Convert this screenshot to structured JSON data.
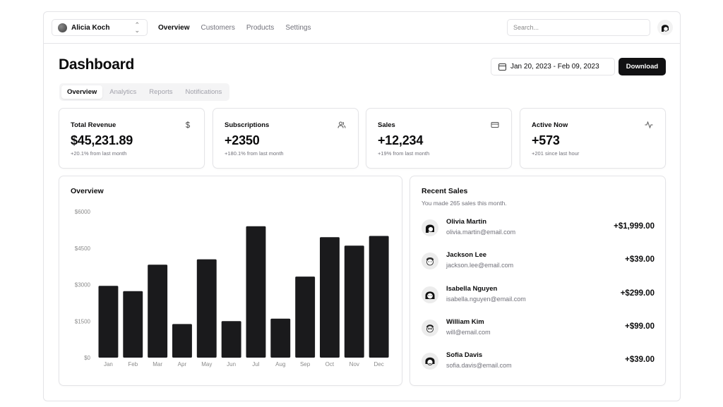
{
  "account": {
    "name": "Alicia Koch"
  },
  "nav": [
    "Overview",
    "Customers",
    "Products",
    "Settings"
  ],
  "search": {
    "placeholder": "Search..."
  },
  "page_title": "Dashboard",
  "date_range": "Jan 20, 2023 - Feb 09, 2023",
  "download_label": "Download",
  "tabs": [
    "Overview",
    "Analytics",
    "Reports",
    "Notifications"
  ],
  "stats": [
    {
      "label": "Total Revenue",
      "value": "$45,231.89",
      "sub": "+20.1% from last month",
      "icon": "dollar-icon"
    },
    {
      "label": "Subscriptions",
      "value": "+2350",
      "sub": "+180.1% from last month",
      "icon": "users-icon"
    },
    {
      "label": "Sales",
      "value": "+12,234",
      "sub": "+19% from last month",
      "icon": "credit-card-icon"
    },
    {
      "label": "Active Now",
      "value": "+573",
      "sub": "+201 since last hour",
      "icon": "activity-icon"
    }
  ],
  "overview_title": "Overview",
  "chart_data": {
    "type": "bar",
    "title": "",
    "categories": [
      "Jan",
      "Feb",
      "Mar",
      "Apr",
      "May",
      "Jun",
      "Jul",
      "Aug",
      "Sep",
      "Oct",
      "Nov",
      "Dec"
    ],
    "values": [
      2950,
      2730,
      3820,
      1380,
      4040,
      1500,
      5400,
      1600,
      3330,
      4950,
      4600,
      5000
    ],
    "ylim": [
      0,
      6000
    ],
    "yticks": [
      "$0",
      "$1500",
      "$3000",
      "$4500",
      "$6000"
    ],
    "bar_color": "#1a1a1c",
    "grid": false
  },
  "recent_sales": {
    "title": "Recent Sales",
    "description": "You made 265 sales this month.",
    "items": [
      {
        "name": "Olivia Martin",
        "email": "olivia.martin@email.com",
        "amount": "+$1,999.00"
      },
      {
        "name": "Jackson Lee",
        "email": "jackson.lee@email.com",
        "amount": "+$39.00"
      },
      {
        "name": "Isabella Nguyen",
        "email": "isabella.nguyen@email.com",
        "amount": "+$299.00"
      },
      {
        "name": "William Kim",
        "email": "will@email.com",
        "amount": "+$99.00"
      },
      {
        "name": "Sofia Davis",
        "email": "sofia.davis@email.com",
        "amount": "+$39.00"
      }
    ]
  }
}
